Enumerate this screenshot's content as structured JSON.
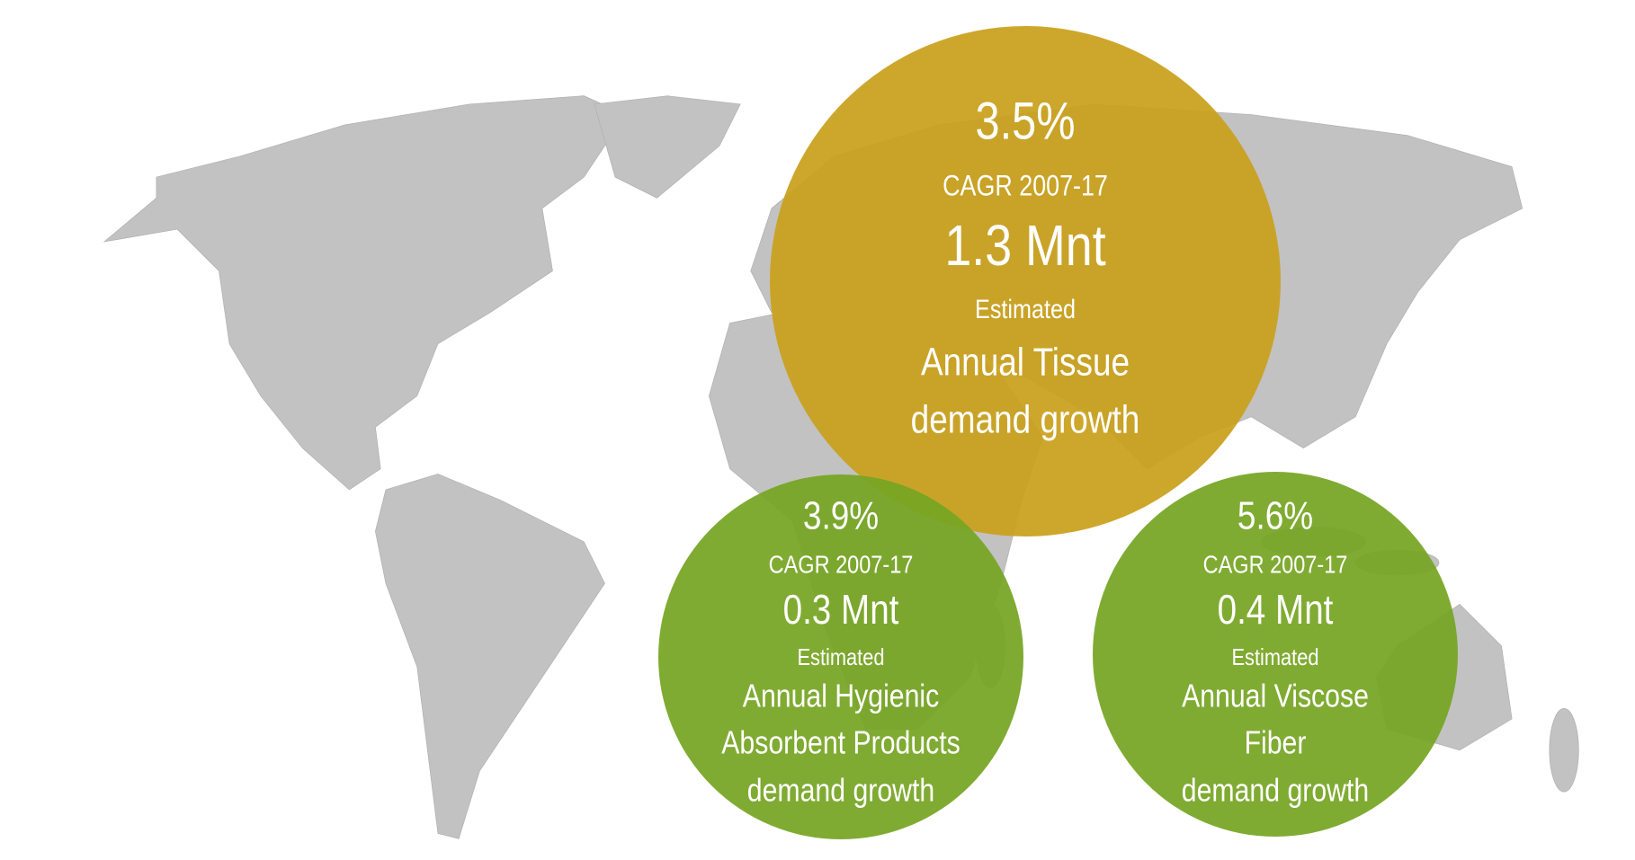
{
  "bubbles": [
    {
      "percent": "3.5%",
      "cagr": "CAGR 2007-17",
      "amount": "1.3 Mnt",
      "estimated": "Estimated",
      "description": [
        "Annual Tissue",
        "demand growth"
      ]
    },
    {
      "percent": "3.9%",
      "cagr": "CAGR 2007-17",
      "amount": "0.3 Mnt",
      "estimated": "Estimated",
      "description": [
        "Annual Hygienic",
        "Absorbent Products",
        "demand growth"
      ]
    },
    {
      "percent": "5.6%",
      "cagr": "CAGR 2007-17",
      "amount": "0.4 Mnt",
      "estimated": "Estimated",
      "description": [
        "Annual Viscose",
        "Fiber",
        "demand growth"
      ]
    }
  ]
}
